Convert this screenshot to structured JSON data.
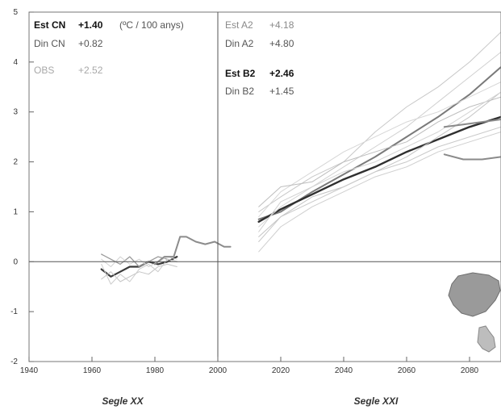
{
  "chart_data": {
    "type": "line",
    "title": "",
    "xlabel_left": "Segle XX",
    "xlabel_right": "Segle XXI",
    "ylabel": "",
    "xlim": [
      1940,
      2090
    ],
    "ylim": [
      -2,
      5
    ],
    "xticks": [
      1940,
      1960,
      1980,
      2000,
      2020,
      2040,
      2060,
      2080
    ],
    "yticks": [
      -2,
      -1,
      0,
      1,
      2,
      3,
      4,
      5
    ],
    "grid": false,
    "reference_lines": {
      "x": 2000,
      "y": 0
    },
    "trend_annotations": [
      {
        "label": "Est CN",
        "value": "+1.40",
        "unit": "(ºC / 100 anys)"
      },
      {
        "label": "Din CN",
        "value": "+0.82"
      },
      {
        "label": "OBS",
        "value": "+2.52"
      },
      {
        "label": "Est A2",
        "value": "+4.18"
      },
      {
        "label": "Din A2",
        "value": "+4.80"
      },
      {
        "label": "Est B2",
        "value": "+2.46"
      },
      {
        "label": "Din B2",
        "value": "+1.45"
      }
    ],
    "series": [
      {
        "x": [
          1963,
          1966,
          1969,
          1972,
          1975,
          1978,
          1981,
          1984,
          1987
        ],
        "y": [
          -0.15,
          -0.3,
          -0.2,
          -0.1,
          -0.1,
          0.0,
          -0.05,
          0.0,
          0.1
        ],
        "color": "#3a3a3a",
        "width": 2.2
      },
      {
        "x": [
          1963,
          1966,
          1969,
          1972,
          1975,
          1978,
          1981,
          1984,
          1987
        ],
        "y": [
          0.15,
          0.05,
          -0.05,
          0.1,
          -0.1,
          0.0,
          0.1,
          0.05,
          0.0
        ],
        "color": "#9a9a9a",
        "width": 1.3
      },
      {
        "x": [
          1963,
          1966,
          1969,
          1972,
          1975,
          1978,
          1981,
          1984,
          1987
        ],
        "y": [
          -0.35,
          -0.2,
          -0.4,
          -0.3,
          -0.2,
          -0.25,
          -0.1,
          -0.05,
          -0.1
        ],
        "color": "#c4c4c4",
        "width": 1
      },
      {
        "x": [
          1963,
          1966,
          1969,
          1972,
          1975,
          1978,
          1981,
          1984,
          1987
        ],
        "y": [
          0.05,
          -0.1,
          0.1,
          -0.05,
          0.05,
          -0.1,
          0.0,
          0.1,
          0.05
        ],
        "color": "#d2d2d2",
        "width": 1
      },
      {
        "x": [
          1963,
          1966,
          1969,
          1972,
          1975,
          1978,
          1981,
          1984,
          1987
        ],
        "y": [
          -0.05,
          -0.45,
          -0.25,
          -0.4,
          -0.15,
          -0.05,
          -0.2,
          0.05,
          0.0
        ],
        "color": "#cccccc",
        "width": 1
      },
      {
        "x": [
          1980,
          1983,
          1986,
          1988,
          1990,
          1993,
          1996,
          1999,
          2002,
          2004
        ],
        "y": [
          -0.05,
          0.1,
          0.1,
          0.5,
          0.5,
          0.4,
          0.35,
          0.4,
          0.3,
          0.3
        ],
        "color": "#8c8c8c",
        "width": 2
      },
      {
        "x": [
          2013,
          2020,
          2030,
          2040,
          2050,
          2060,
          2070,
          2080,
          2090
        ],
        "y": [
          0.85,
          1.0,
          1.4,
          1.75,
          2.1,
          2.5,
          2.9,
          3.35,
          3.9
        ],
        "color": "#7a7a7a",
        "width": 2
      },
      {
        "x": [
          2013,
          2020,
          2030,
          2040,
          2050,
          2060,
          2070,
          2080,
          2090
        ],
        "y": [
          0.8,
          1.05,
          1.35,
          1.65,
          1.9,
          2.2,
          2.45,
          2.7,
          2.9
        ],
        "color": "#2f2f2f",
        "width": 2.4
      },
      {
        "x": [
          2013,
          2020,
          2030,
          2040,
          2050,
          2060,
          2070,
          2080,
          2090
        ],
        "y": [
          1.0,
          1.3,
          1.7,
          2.0,
          2.6,
          3.1,
          3.5,
          4.0,
          4.6
        ],
        "color": "#c8c8c8",
        "width": 1
      },
      {
        "x": [
          2013,
          2020,
          2030,
          2040,
          2050,
          2060,
          2070,
          2080,
          2090
        ],
        "y": [
          0.6,
          1.2,
          1.5,
          1.9,
          2.3,
          2.7,
          3.2,
          3.7,
          4.2
        ],
        "color": "#d0d0d0",
        "width": 1
      },
      {
        "x": [
          2013,
          2020,
          2030,
          2040,
          2050,
          2060,
          2070,
          2080,
          2090
        ],
        "y": [
          0.5,
          0.9,
          1.3,
          1.5,
          1.8,
          2.1,
          2.5,
          2.9,
          3.4
        ],
        "color": "#c4c4c4",
        "width": 1
      },
      {
        "x": [
          2013,
          2020,
          2030,
          2040,
          2050,
          2060,
          2070,
          2080,
          2090
        ],
        "y": [
          0.9,
          1.4,
          1.8,
          2.2,
          2.5,
          2.8,
          3.0,
          3.3,
          3.6
        ],
        "color": "#d6d6d6",
        "width": 1
      },
      {
        "x": [
          2013,
          2020,
          2030,
          2040,
          2050,
          2060,
          2070,
          2080,
          2090
        ],
        "y": [
          0.2,
          0.7,
          1.1,
          1.4,
          1.7,
          1.9,
          2.2,
          2.4,
          2.6
        ],
        "color": "#cfcfcf",
        "width": 1
      },
      {
        "x": [
          2013,
          2020,
          2030,
          2040,
          2050,
          2060,
          2070,
          2080,
          2090
        ],
        "y": [
          1.1,
          1.5,
          1.6,
          2.0,
          2.2,
          2.4,
          2.8,
          3.1,
          3.3
        ],
        "color": "#bdbdbd",
        "width": 1
      },
      {
        "x": [
          2013,
          2020,
          2030,
          2040,
          2050,
          2060,
          2070,
          2080,
          2090
        ],
        "y": [
          0.7,
          1.1,
          1.5,
          1.8,
          2.0,
          2.3,
          2.6,
          3.0,
          3.4
        ],
        "color": "#d4d4d4",
        "width": 1
      },
      {
        "x": [
          2013,
          2020,
          2030,
          2040,
          2050,
          2060,
          2070,
          2080,
          2090
        ],
        "y": [
          0.4,
          0.9,
          1.2,
          1.5,
          1.8,
          2.0,
          2.3,
          2.5,
          2.7
        ],
        "color": "#c9c9c9",
        "width": 1
      },
      {
        "x": [
          2072,
          2078,
          2084,
          2090
        ],
        "y": [
          2.7,
          2.75,
          2.8,
          2.85
        ],
        "color": "#8a8a8a",
        "width": 2
      },
      {
        "x": [
          2072,
          2078,
          2084,
          2090
        ],
        "y": [
          2.15,
          2.05,
          2.05,
          2.1
        ],
        "color": "#8a8a8a",
        "width": 2
      }
    ]
  }
}
